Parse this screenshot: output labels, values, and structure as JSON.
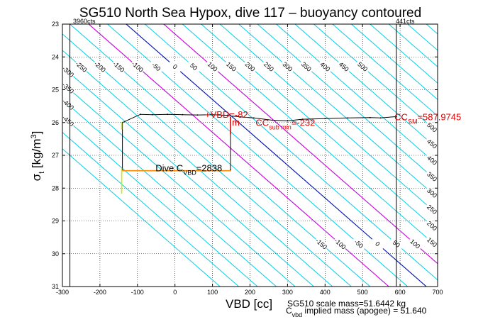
{
  "chart_data": {
    "type": "line",
    "title": "SG510 North Sea Hypox, dive 117 – buoyancy contoured",
    "xlabel": "VBD [cc]",
    "ylabel": {
      "base": "σ",
      "sub": "t",
      "rest": " [kg/m",
      "sup": "3",
      "end": "]"
    },
    "xlim": [
      -300,
      700
    ],
    "ylim": [
      23,
      31
    ],
    "y_reversed": true,
    "grid": true,
    "x_ticks": [
      -300,
      -200,
      -100,
      0,
      100,
      200,
      300,
      400,
      500,
      600,
      700
    ],
    "y_ticks": [
      23,
      24,
      25,
      26,
      27,
      28,
      29,
      30,
      31
    ],
    "corner_labels": {
      "left": "3960cts",
      "right": "441cts"
    },
    "buoyancy_contours": {
      "color": "#00cfe8",
      "ref_sigma": 25.8,
      "ref_vbd": 150,
      "vbd_per_sigma": 100,
      "values": [
        -550,
        -500,
        -450,
        -400,
        -350,
        -300,
        -250,
        -200,
        -150,
        -100,
        -50,
        0,
        50,
        100,
        150,
        200,
        250,
        300,
        350,
        400,
        450,
        500,
        550,
        600,
        650,
        700,
        750,
        800
      ],
      "labels_top": [
        {
          "value": -450,
          "text": "-450"
        },
        {
          "value": -400,
          "text": "-400"
        },
        {
          "value": -350,
          "text": "-350"
        },
        {
          "value": -300,
          "text": "-300"
        },
        {
          "value": -250,
          "text": "-250"
        },
        {
          "value": -200,
          "text": "-200"
        },
        {
          "value": -150,
          "text": "-150"
        },
        {
          "value": -100,
          "text": "-100"
        },
        {
          "value": -50,
          "text": "-50"
        },
        {
          "value": 0,
          "text": "0"
        },
        {
          "value": 50,
          "text": "50"
        },
        {
          "value": 100,
          "text": "100"
        },
        {
          "value": 150,
          "text": "150"
        },
        {
          "value": 200,
          "text": "200"
        },
        {
          "value": 250,
          "text": "250"
        },
        {
          "value": 300,
          "text": "300"
        },
        {
          "value": 350,
          "text": "350"
        },
        {
          "value": 400,
          "text": "400"
        },
        {
          "value": 450,
          "text": "450"
        },
        {
          "value": 500,
          "text": "500"
        }
      ],
      "labels_bottom": [
        {
          "value": -150,
          "text": "-150"
        },
        {
          "value": -100,
          "text": "-100"
        },
        {
          "value": -50,
          "text": "-50"
        },
        {
          "value": 0,
          "text": "0"
        },
        {
          "value": 50,
          "text": "50"
        },
        {
          "value": 100,
          "text": "100"
        },
        {
          "value": 150,
          "text": "150"
        },
        {
          "value": 200,
          "text": "200"
        },
        {
          "value": 250,
          "text": "250"
        },
        {
          "value": 300,
          "text": "300"
        },
        {
          "value": 350,
          "text": "350"
        },
        {
          "value": 400,
          "text": "400"
        },
        {
          "value": 450,
          "text": "450"
        },
        {
          "value": 500,
          "text": "500"
        }
      ]
    },
    "special_contours": [
      {
        "name": "blue",
        "color": "#1010b0",
        "value": 0
      },
      {
        "name": "magenta-left",
        "color": "#e000e0",
        "value": -100
      },
      {
        "name": "magenta-right",
        "color": "#e000e0",
        "value": 100
      }
    ],
    "vertical_lines": [
      {
        "x": -280,
        "color": "#000000"
      },
      {
        "x": 590,
        "color": "#000000"
      }
    ],
    "series": [
      {
        "color": "#000000",
        "x": [
          -140,
          -92,
          -60,
          -20,
          20,
          60,
          100,
          140,
          148,
          175,
          210,
          260,
          300,
          340,
          400,
          460,
          520,
          548,
          590
        ],
        "y": [
          26.0,
          25.75,
          25.76,
          25.75,
          25.76,
          25.77,
          25.76,
          25.78,
          25.8,
          25.83,
          25.86,
          25.93,
          25.95,
          25.9,
          25.88,
          25.86,
          25.85,
          25.86,
          25.82
        ]
      },
      {
        "color": "#000000",
        "x": [
          -140,
          -140
        ],
        "y": [
          26.0,
          27.45
        ]
      },
      {
        "color": "#000000",
        "x": [
          148,
          148
        ],
        "y": [
          25.85,
          27.45
        ]
      },
      {
        "color": "#ff8c00",
        "x": [
          -140,
          -50,
          0,
          50,
          100,
          148
        ],
        "y": [
          27.47,
          27.47,
          27.47,
          27.47,
          27.47,
          27.47
        ]
      },
      {
        "color": "#c8ee00",
        "x": [
          -142,
          -142
        ],
        "y": [
          27.4,
          28.15
        ]
      },
      {
        "color": "#c8ee00",
        "x": [
          -142,
          -142
        ],
        "y": [
          26.0,
          26.2
        ]
      },
      {
        "color": "#e00000",
        "x": [
          148,
          148
        ],
        "y": [
          25.85,
          26.35
        ]
      }
    ],
    "annotations": [
      {
        "x": 80,
        "y": 25.77,
        "main": "+VBD",
        "sub": "",
        "tail": "=-82",
        "color": "#e00000"
      },
      {
        "x": 152,
        "y": 26.0,
        "main": "m",
        "sub": "",
        "tail": "",
        "color": "#e00000"
      },
      {
        "x": 215,
        "y": 26.02,
        "main": "CC",
        "sub": "sub min",
        "tail": "=-232",
        "color": "#e00000"
      },
      {
        "x": 585,
        "y": 25.84,
        "main": "CC",
        "sub": "SM",
        "tail": "=587.9745",
        "color": "#e00000"
      },
      {
        "x": -52,
        "y": 27.4,
        "main": "Dive C",
        "sub": "VBD",
        "tail": "=2838",
        "color": "#000000"
      }
    ]
  },
  "footer": {
    "line1": "SG510 scale mass=51.6442 kg",
    "line2_main": "C",
    "line2_sub": "vbd",
    "line2_tail": " implied mass (apogee) = 51.640"
  }
}
